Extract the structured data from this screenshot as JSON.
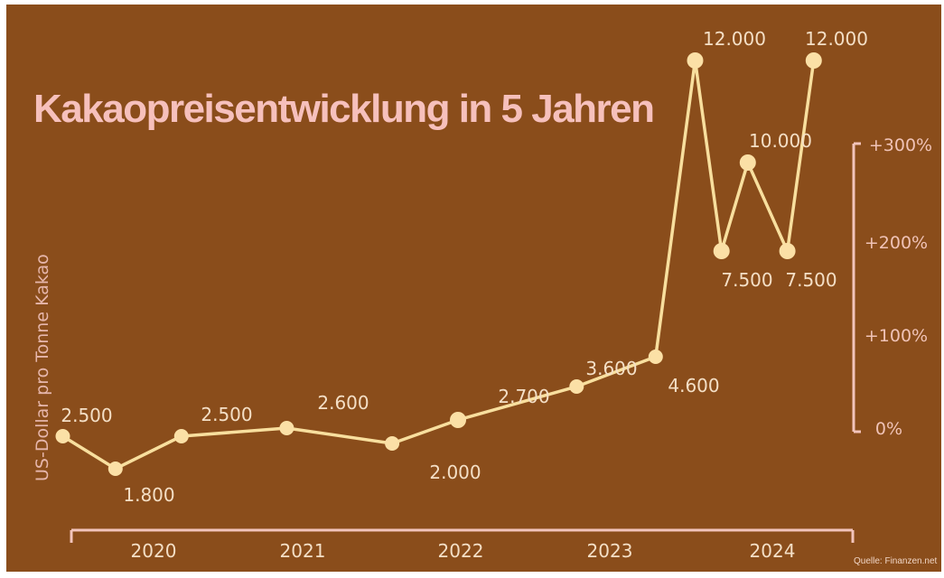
{
  "colors": {
    "background": "#8a4d1b",
    "title": "#f6c0bc",
    "line": "#f8df9e",
    "marker": "#fbe0a6",
    "axis": "#f2c4bb",
    "text": "#f4dfc6"
  },
  "chart_data": {
    "type": "line",
    "title": "Kakaopreisentwicklung in 5 Jahren",
    "ylabel": "US-Dollar pro Tonne Kakao",
    "x_ticks": [
      "2020",
      "2021",
      "2022",
      "2023",
      "2024"
    ],
    "series": [
      {
        "values": [
          2500,
          1800,
          2500,
          2600,
          2000,
          2700,
          3600,
          4600,
          12000,
          7500,
          10000,
          7500,
          12000
        ],
        "labels": [
          "2.500",
          "1.800",
          "2.500",
          "2.600",
          "2.000",
          "2.700",
          "3.600",
          "4.600",
          "12.000",
          "7.500",
          "10.000",
          "7.500",
          "12.000"
        ],
        "x": [
          "2019-10",
          "2020-02",
          "2020-07",
          "2021-03",
          "2021-11",
          "2022-04",
          "2023-01",
          "2023-07",
          "2023-10",
          "2023-12",
          "2024-02",
          "2024-05",
          "2024-07"
        ]
      }
    ],
    "secondary_axis": {
      "ticks": [
        "+300%",
        "+200%",
        "+100%",
        "0%"
      ]
    },
    "source": "Quelle: Finanzen.net",
    "grid": false
  }
}
